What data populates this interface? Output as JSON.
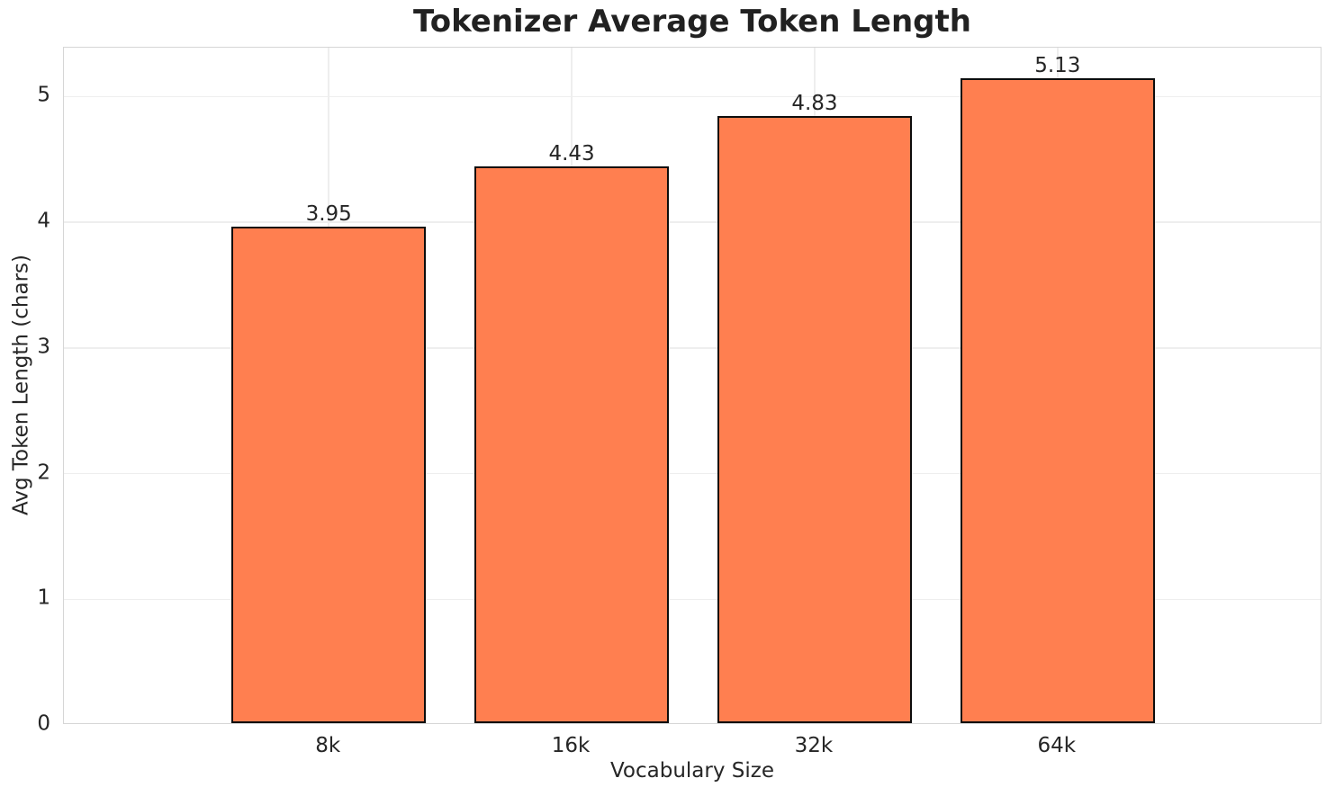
{
  "chart_data": {
    "type": "bar",
    "title": "Tokenizer Average Token Length",
    "xlabel": "Vocabulary Size",
    "ylabel": "Avg Token Length (chars)",
    "categories": [
      "8k",
      "16k",
      "32k",
      "64k"
    ],
    "values": [
      3.95,
      4.43,
      4.83,
      5.13
    ],
    "bar_labels": [
      "3.95",
      "4.43",
      "4.83",
      "5.13"
    ],
    "yticks": [
      0,
      1,
      2,
      3,
      4,
      5
    ],
    "ylim": [
      0,
      5.39
    ],
    "grid": true,
    "legend_position": "none",
    "colors": {
      "bar_fill": "#FF7F50",
      "bar_edge": "#0d0d0d",
      "grid": "#eeeeee",
      "spine": "#d6d6d6",
      "text": "#262626",
      "title": "#212121",
      "background": "#ffffff"
    }
  }
}
